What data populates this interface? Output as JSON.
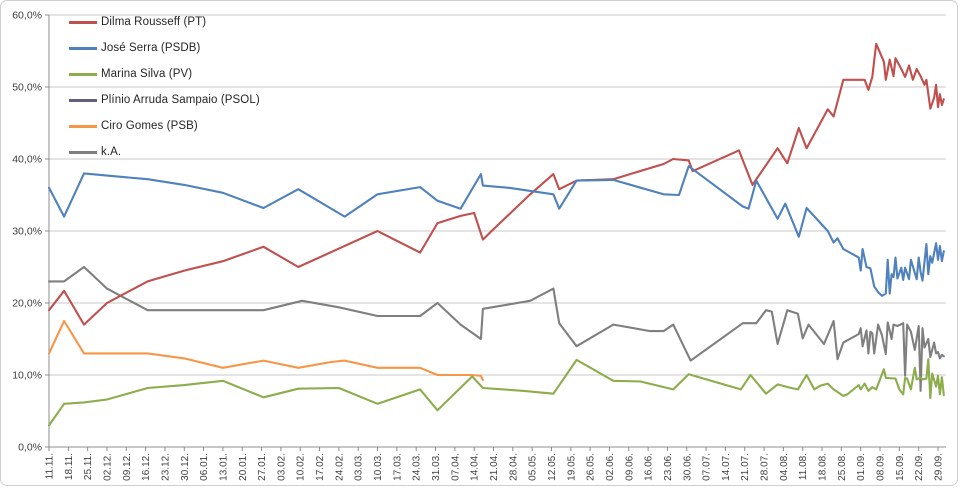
{
  "chart_data": {
    "type": "line",
    "title": "",
    "ylabel": "",
    "xlabel": "",
    "ylim": [
      0,
      60
    ],
    "y_step": 10,
    "grid": true,
    "legend_position": "top-left-inside",
    "y_tick_labels": [
      "0,0%",
      "10,0%",
      "20,0%",
      "30,0%",
      "40,0%",
      "50,0%",
      "60,0%"
    ],
    "x_tick_labels": [
      "11.11.",
      "18.11.",
      "25.11.",
      "02.12.",
      "09.12.",
      "16.12.",
      "23.12.",
      "30.12.",
      "06.01.",
      "13.01.",
      "20.01.",
      "27.01.",
      "03.02.",
      "10.02.",
      "17.02.",
      "24.02.",
      "03.03.",
      "10.03.",
      "17.03.",
      "24.03.",
      "31.03.",
      "07.04.",
      "14.04.",
      "21.04.",
      "28.04.",
      "05.05.",
      "12.05.",
      "19.05.",
      "26.05.",
      "02.06.",
      "09.06.",
      "16.06.",
      "23.06.",
      "30.06.",
      "07.07.",
      "14.07.",
      "21.07.",
      "28.07.",
      "04.08.",
      "11.08.",
      "18.08.",
      "25.08.",
      "01.09.",
      "08.09.",
      "15.09.",
      "22.09.",
      "29.09."
    ],
    "legend": [
      {
        "label": "Dilma Rousseff (PT)",
        "color": "#C0504D"
      },
      {
        "label": "José Serra (PSDB)",
        "color": "#4F81BD"
      },
      {
        "label": "Marina Silva (PV)",
        "color": "#8CAD4B"
      },
      {
        "label": "Plínio Arruda Sampaio (PSOL)",
        "color": "#655F7F"
      },
      {
        "label": "Ciro Gomes (PSB)",
        "color": "#F79646"
      },
      {
        "label": "k.A.",
        "color": "#7F7F7F"
      }
    ],
    "series": [
      {
        "name": "Dilma Rousseff (PT)",
        "color": "#C0504D",
        "points": [
          [
            0,
            19
          ],
          [
            0.78,
            21.7
          ],
          [
            1.81,
            17
          ],
          [
            3,
            20
          ],
          [
            5.1,
            23
          ],
          [
            7,
            24.5
          ],
          [
            9,
            25.8
          ],
          [
            11.1,
            27.8
          ],
          [
            12.9,
            25
          ],
          [
            15.2,
            27.8
          ],
          [
            17,
            30
          ],
          [
            19.2,
            27
          ],
          [
            20.1,
            31.1
          ],
          [
            21.3,
            32.1
          ],
          [
            22,
            32.5
          ],
          [
            22.45,
            28.8
          ],
          [
            22.9,
            30
          ],
          [
            24.9,
            35.1
          ],
          [
            26.1,
            37.9
          ],
          [
            26.4,
            35.8
          ],
          [
            27.3,
            37
          ],
          [
            29.2,
            37.2
          ],
          [
            31.8,
            39.3
          ],
          [
            32.3,
            40
          ],
          [
            33.1,
            39.8
          ],
          [
            33.3,
            38.3
          ],
          [
            35.7,
            41.2
          ],
          [
            36.4,
            36.4
          ],
          [
            37.7,
            41.5
          ],
          [
            38.2,
            39.4
          ],
          [
            38.8,
            44.3
          ],
          [
            39.2,
            41.5
          ],
          [
            40.3,
            46.9
          ],
          [
            40.6,
            45.9
          ],
          [
            41.1,
            51
          ],
          [
            42.2,
            51
          ],
          [
            42.4,
            49.6
          ],
          [
            42.6,
            51.4
          ],
          [
            42.8,
            56
          ],
          [
            43.2,
            53.5
          ],
          [
            43.3,
            51
          ],
          [
            43.5,
            53.8
          ],
          [
            43.7,
            51.5
          ],
          [
            43.8,
            54
          ],
          [
            44.1,
            52.5
          ],
          [
            44.3,
            51.4
          ],
          [
            44.5,
            53
          ],
          [
            44.7,
            51
          ],
          [
            44.9,
            52.5
          ],
          [
            45.1,
            51.5
          ],
          [
            45.3,
            50.3
          ],
          [
            45.4,
            51
          ],
          [
            45.6,
            47
          ],
          [
            45.8,
            48.5
          ],
          [
            45.9,
            50.3
          ],
          [
            46,
            47.2
          ],
          [
            46.1,
            49
          ],
          [
            46.2,
            47.5
          ],
          [
            46.3,
            48.3
          ]
        ]
      },
      {
        "name": "José Serra (PSDB)",
        "color": "#4F81BD",
        "points": [
          [
            0,
            36
          ],
          [
            0.78,
            32
          ],
          [
            1.81,
            38
          ],
          [
            3,
            37.7
          ],
          [
            5.1,
            37.2
          ],
          [
            7,
            36.4
          ],
          [
            9,
            35.3
          ],
          [
            11.1,
            33.2
          ],
          [
            12.9,
            35.8
          ],
          [
            15.3,
            32
          ],
          [
            17,
            35.1
          ],
          [
            19.2,
            36.1
          ],
          [
            20.1,
            34.2
          ],
          [
            21.3,
            33.1
          ],
          [
            22.35,
            37.9
          ],
          [
            22.45,
            36.3
          ],
          [
            23.8,
            36
          ],
          [
            26.1,
            35.1
          ],
          [
            26.4,
            33.1
          ],
          [
            27.3,
            37
          ],
          [
            29.2,
            37.1
          ],
          [
            31.8,
            35.1
          ],
          [
            32.6,
            35
          ],
          [
            33.1,
            39
          ],
          [
            33.9,
            37.4
          ],
          [
            35.9,
            33.4
          ],
          [
            36.2,
            33.1
          ],
          [
            36.6,
            37
          ],
          [
            37.7,
            31.7
          ],
          [
            38.1,
            33.8
          ],
          [
            38.8,
            29.2
          ],
          [
            39.2,
            33.2
          ],
          [
            40.3,
            30
          ],
          [
            40.6,
            28.4
          ],
          [
            40.8,
            29
          ],
          [
            41.1,
            27.5
          ],
          [
            41.9,
            26.3
          ],
          [
            42,
            24.5
          ],
          [
            42.1,
            27.5
          ],
          [
            42.3,
            25
          ],
          [
            42.5,
            24.8
          ],
          [
            42.7,
            22.3
          ],
          [
            42.9,
            21.5
          ],
          [
            43.1,
            21
          ],
          [
            43.3,
            21.3
          ],
          [
            43.4,
            26
          ],
          [
            43.5,
            21.3
          ],
          [
            43.6,
            24
          ],
          [
            43.7,
            23.6
          ],
          [
            43.8,
            26.3
          ],
          [
            43.9,
            23.4
          ],
          [
            44.1,
            24.9
          ],
          [
            44.2,
            23.2
          ],
          [
            44.3,
            24.9
          ],
          [
            44.5,
            23.3
          ],
          [
            44.6,
            26
          ],
          [
            44.8,
            24.2
          ],
          [
            44.9,
            23.3
          ],
          [
            45,
            26.3
          ],
          [
            45.1,
            24.3
          ],
          [
            45.2,
            23.1
          ],
          [
            45.4,
            28.2
          ],
          [
            45.5,
            24
          ],
          [
            45.6,
            26.5
          ],
          [
            45.7,
            25.6
          ],
          [
            45.9,
            28.3
          ],
          [
            46,
            26
          ],
          [
            46.1,
            27.9
          ],
          [
            46.2,
            25.8
          ],
          [
            46.3,
            27.2
          ]
        ]
      },
      {
        "name": "Marina Silva (PV)",
        "color": "#8CAD4B",
        "points": [
          [
            0,
            3
          ],
          [
            0.78,
            6
          ],
          [
            1.81,
            6.2
          ],
          [
            3,
            6.6
          ],
          [
            5.1,
            8.2
          ],
          [
            7,
            8.6
          ],
          [
            9,
            9.2
          ],
          [
            11.1,
            6.9
          ],
          [
            12.9,
            8.1
          ],
          [
            15,
            8.2
          ],
          [
            17,
            6
          ],
          [
            19.2,
            8
          ],
          [
            20.1,
            5.1
          ],
          [
            21.9,
            9.8
          ],
          [
            22.45,
            8.2
          ],
          [
            24.5,
            7.8
          ],
          [
            26.1,
            7.4
          ],
          [
            27.3,
            12.1
          ],
          [
            29.2,
            9.2
          ],
          [
            30.6,
            9.1
          ],
          [
            32.3,
            8
          ],
          [
            33.1,
            10.1
          ],
          [
            35.8,
            8
          ],
          [
            36.3,
            10
          ],
          [
            37.1,
            7.4
          ],
          [
            37.7,
            8.7
          ],
          [
            38.4,
            8.2
          ],
          [
            38.75,
            8
          ],
          [
            39.2,
            10
          ],
          [
            39.6,
            8
          ],
          [
            39.9,
            8.5
          ],
          [
            40.3,
            8.8
          ],
          [
            40.6,
            8
          ],
          [
            41.1,
            7.1
          ],
          [
            41.3,
            7.3
          ],
          [
            41.9,
            8.6
          ],
          [
            42,
            8
          ],
          [
            42.2,
            8.8
          ],
          [
            42.4,
            7.8
          ],
          [
            42.6,
            8.3
          ],
          [
            42.8,
            8
          ],
          [
            43.2,
            10.8
          ],
          [
            43.3,
            9.6
          ],
          [
            43.8,
            9.5
          ],
          [
            44,
            8
          ],
          [
            44.2,
            7.3
          ],
          [
            44.3,
            9.6
          ],
          [
            44.4,
            9.5
          ],
          [
            44.6,
            8
          ],
          [
            44.8,
            11
          ],
          [
            44.9,
            9.4
          ],
          [
            45.1,
            9.6
          ],
          [
            45.2,
            9.4
          ],
          [
            45.4,
            9.5
          ],
          [
            45.5,
            12.2
          ],
          [
            45.6,
            6.8
          ],
          [
            45.7,
            10.2
          ],
          [
            45.9,
            8.4
          ],
          [
            46,
            9.9
          ],
          [
            46.1,
            7.3
          ],
          [
            46.2,
            9.7
          ],
          [
            46.3,
            7.2
          ]
        ]
      },
      {
        "name": "Plínio Arruda Sampaio (PSOL)",
        "color": "#655F7F",
        "visible": false,
        "points": []
      },
      {
        "name": "Ciro Gomes (PSB)",
        "color": "#F79646",
        "points": [
          [
            0,
            13
          ],
          [
            0.78,
            17.5
          ],
          [
            1.81,
            13
          ],
          [
            3,
            13
          ],
          [
            5.1,
            13
          ],
          [
            7,
            12.3
          ],
          [
            9,
            11
          ],
          [
            11.1,
            12
          ],
          [
            12.9,
            11
          ],
          [
            14.6,
            11.8
          ],
          [
            15.3,
            12
          ],
          [
            17,
            11
          ],
          [
            19.2,
            11
          ],
          [
            20.1,
            10
          ],
          [
            21.8,
            10
          ],
          [
            22.35,
            9.9
          ],
          [
            22.45,
            9.3
          ]
        ]
      },
      {
        "name": "k.A.",
        "color": "#7F7F7F",
        "points": [
          [
            0,
            23
          ],
          [
            0.78,
            23
          ],
          [
            1.81,
            25
          ],
          [
            3,
            22
          ],
          [
            5.1,
            19
          ],
          [
            7,
            19
          ],
          [
            9,
            19
          ],
          [
            11.1,
            19
          ],
          [
            13.1,
            20.3
          ],
          [
            15,
            19.4
          ],
          [
            17,
            18.2
          ],
          [
            19.2,
            18.2
          ],
          [
            20.1,
            20
          ],
          [
            21.3,
            17
          ],
          [
            22.35,
            15
          ],
          [
            22.45,
            19.2
          ],
          [
            24.9,
            20.3
          ],
          [
            26.1,
            22
          ],
          [
            26.4,
            17.2
          ],
          [
            27.3,
            14
          ],
          [
            29.2,
            17
          ],
          [
            31.1,
            16.1
          ],
          [
            31.8,
            16.1
          ],
          [
            32.3,
            17
          ],
          [
            33.2,
            12
          ],
          [
            35.9,
            17.2
          ],
          [
            36.6,
            17.2
          ],
          [
            37.1,
            19
          ],
          [
            37.4,
            18.8
          ],
          [
            37.7,
            14.3
          ],
          [
            38.2,
            19
          ],
          [
            38.75,
            18.5
          ],
          [
            39,
            15.1
          ],
          [
            39.3,
            17
          ],
          [
            40.1,
            14.3
          ],
          [
            40.6,
            17.5
          ],
          [
            40.8,
            12.2
          ],
          [
            41.1,
            14.5
          ],
          [
            41.9,
            15.7
          ],
          [
            42,
            16.5
          ],
          [
            42.1,
            14
          ],
          [
            42.3,
            16.2
          ],
          [
            42.4,
            13
          ],
          [
            42.5,
            16
          ],
          [
            42.6,
            15.8
          ],
          [
            42.7,
            13
          ],
          [
            42.9,
            17
          ],
          [
            43.1,
            15.5
          ],
          [
            43.3,
            12.9
          ],
          [
            43.4,
            17.3
          ],
          [
            43.6,
            15
          ],
          [
            43.7,
            17
          ],
          [
            43.9,
            16.8
          ],
          [
            44.2,
            17.2
          ],
          [
            44.3,
            9.9
          ],
          [
            44.4,
            17
          ],
          [
            44.6,
            16
          ],
          [
            44.8,
            13.5
          ],
          [
            45,
            16.8
          ],
          [
            45.1,
            7.8
          ],
          [
            45.2,
            16.5
          ],
          [
            45.3,
            13.8
          ],
          [
            45.5,
            15
          ],
          [
            45.6,
            12.5
          ],
          [
            45.8,
            14.5
          ],
          [
            45.9,
            13
          ],
          [
            46,
            13.2
          ],
          [
            46.1,
            12.3
          ],
          [
            46.2,
            12.8
          ],
          [
            46.3,
            12.6
          ]
        ]
      }
    ]
  }
}
